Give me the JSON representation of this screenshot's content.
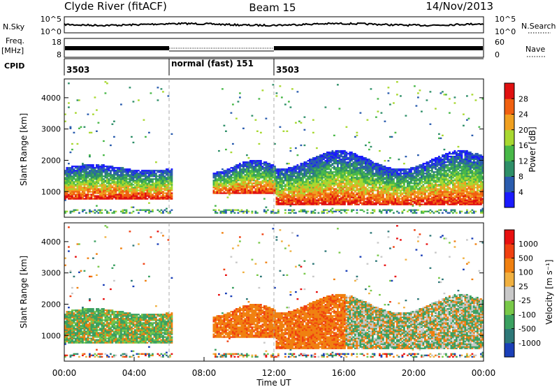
{
  "header": {
    "station": "Clyde River (fitACF)",
    "beam": "Beam 15",
    "date": "14/Nov/2013"
  },
  "top_panels": {
    "nsky_label": "N.Sky",
    "nsky_ticks": [
      "10^5",
      "10^0"
    ],
    "nsearch_label": "N.Search",
    "nsearch_ticks": [
      "10^5",
      "10^0"
    ],
    "freq_label": "Freq.",
    "freq_unit": "[MHz]",
    "freq_ticks": [
      "18",
      "8"
    ],
    "nave_label": "Nave",
    "nave_ticks": [
      "60",
      "0"
    ],
    "cpid_label": "CPID",
    "cpid_segments": [
      {
        "label": "3503",
        "start_hour": 0,
        "end_hour": 6
      },
      {
        "label": "normal (fast) 151",
        "start_hour": 6,
        "end_hour": 12
      },
      {
        "label": "3503",
        "start_hour": 12,
        "end_hour": 24
      }
    ]
  },
  "chart_data": [
    {
      "type": "heatmap",
      "name": "power",
      "ylabel": "Slant Range [km]",
      "ylim": [
        180,
        4600
      ],
      "yticks": [
        "1000",
        "2000",
        "3000",
        "4000"
      ],
      "xlim": [
        0,
        24
      ],
      "colorbar_label": "Power [dB]",
      "colorbar_ticks": [
        "4",
        "8",
        "12",
        "16",
        "20",
        "24",
        "28"
      ],
      "colorbar_colors": [
        "#1a1aff",
        "#2a5cae",
        "#2e8f68",
        "#48b848",
        "#a8d830",
        "#f0a020",
        "#f06010",
        "#e01010"
      ],
      "data_gap_hours": [
        6.1,
        8.4
      ],
      "regions": [
        {
          "t0": 0.0,
          "t1": 6.1,
          "r0": 700,
          "r1": 1850
        },
        {
          "t0": 8.4,
          "t1": 24.0,
          "r0": 500,
          "r1": 2300
        }
      ]
    },
    {
      "type": "heatmap",
      "name": "velocity",
      "ylabel": "Slant Range [km]",
      "xlabel": "Time UT",
      "ylim": [
        180,
        4600
      ],
      "yticks": [
        "1000",
        "2000",
        "3000",
        "4000"
      ],
      "xlim": [
        0,
        24
      ],
      "xticks": [
        "00:00",
        "04:00",
        "08:00",
        "12:00",
        "16:00",
        "20:00",
        "00:00"
      ],
      "colorbar_label": "Velocity [m s⁻¹]",
      "colorbar_ticks": [
        "1000",
        "500",
        "100",
        "25",
        "-25",
        "-100",
        "-500",
        "-1000"
      ],
      "colorbar_colors": [
        "#1a3fb8",
        "#2e7878",
        "#3aa060",
        "#78c848",
        "#c8c8c8",
        "#f0b040",
        "#f08010",
        "#f04010",
        "#e81010"
      ],
      "data_gap_hours": [
        6.1,
        8.4
      ]
    }
  ]
}
